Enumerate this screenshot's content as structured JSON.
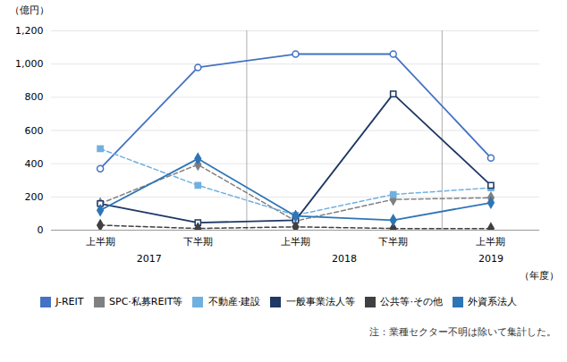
{
  "chart_data": {
    "type": "line",
    "y_label": "（億円）",
    "x_label": "（年度）",
    "caption": "注：業種セクター不明は除いて集計した。",
    "annotations": [
      "2017",
      "2018",
      "2019"
    ],
    "categories": [
      "上半期",
      "下半期",
      "上半期",
      "下半期",
      "上半期"
    ],
    "series": [
      {
        "name": "J-REIT",
        "color": "#4472C4",
        "marker": "circle-open",
        "line_style": "solid",
        "values": [
          370,
          980,
          1060,
          1060,
          435
        ]
      },
      {
        "name": "SPC·私募REIT等",
        "color": "#808080",
        "marker": "diamond",
        "line_style": "dashed",
        "values": [
          160,
          395,
          55,
          185,
          195
        ]
      },
      {
        "name": "不動産·建設",
        "color": "#70B0E0",
        "marker": "square",
        "line_style": "dashed",
        "values": [
          490,
          270,
          90,
          215,
          255
        ]
      },
      {
        "name": "一般事業法人等",
        "color": "#1F3864",
        "marker": "square-open",
        "line_style": "solid",
        "values": [
          160,
          45,
          60,
          820,
          270
        ]
      },
      {
        "name": "公共等·その他",
        "color": "#404040",
        "marker": "diamond",
        "line_style": "dashed",
        "values": [
          30,
          10,
          20,
          10,
          10
        ]
      },
      {
        "name": "外資系法人",
        "color": "#2E75B6",
        "marker": "diamond",
        "line_style": "solid",
        "values": [
          120,
          430,
          85,
          60,
          165
        ]
      }
    ],
    "ylim": [
      0,
      1200
    ],
    "yticks": [
      0,
      200,
      400,
      600,
      800,
      {
        "value": 1000,
        "label": "1,000"
      },
      {
        "value": 1200,
        "label": "1,200"
      }
    ],
    "grid": true,
    "legend": "bottom"
  }
}
